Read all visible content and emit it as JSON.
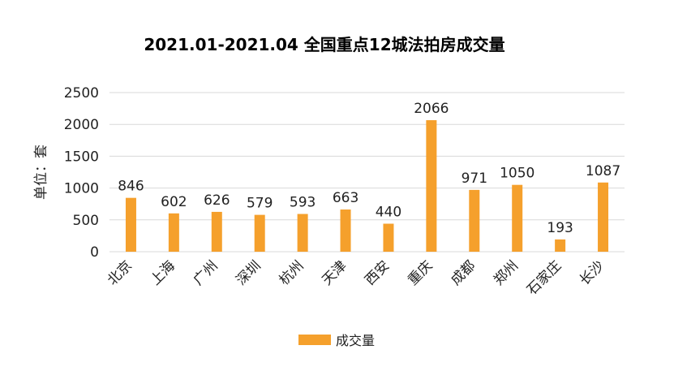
{
  "chart_data": {
    "type": "bar",
    "title": "2021.01-2021.04 全国重点12城法拍房成交量",
    "ylabel": "单位：套",
    "xlabel": "",
    "categories": [
      "北京",
      "上海",
      "广州",
      "深圳",
      "杭州",
      "天津",
      "西安",
      "重庆",
      "成都",
      "郑州",
      "石家庄",
      "长沙"
    ],
    "series": [
      {
        "name": "成交量",
        "values": [
          846,
          602,
          626,
          579,
          593,
          663,
          440,
          2066,
          971,
          1050,
          193,
          1087
        ],
        "color": "#F5A02C"
      }
    ],
    "yticks": [
      0,
      500,
      1000,
      1500,
      2000,
      2500
    ],
    "ylim": [
      0,
      2500
    ],
    "grid": true,
    "data_labels": true,
    "legend_position": "bottom"
  }
}
